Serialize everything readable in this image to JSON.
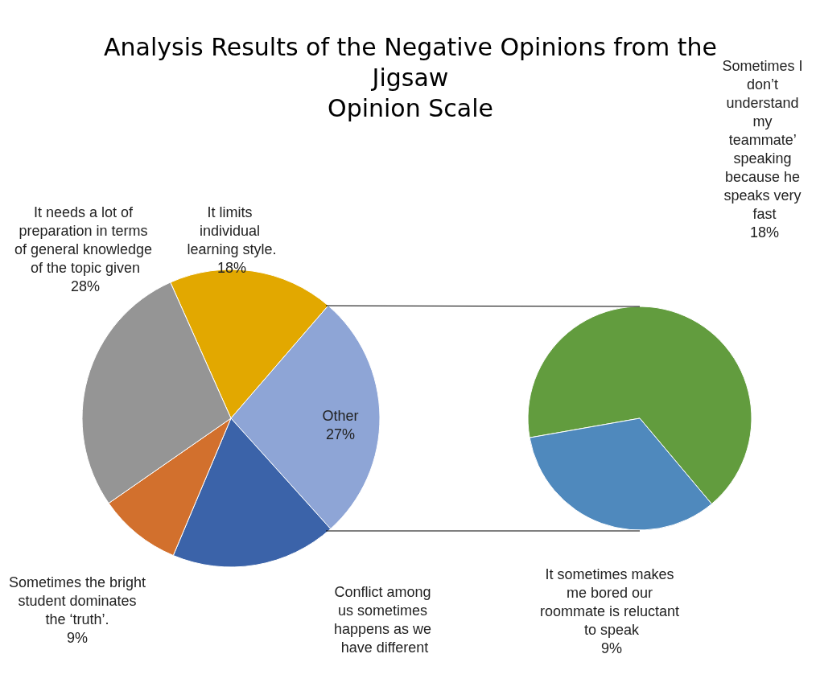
{
  "chart_data": [
    {
      "type": "pie",
      "title": "Analysis Results of the Negative Opinions from the Jigsaw\nOpinion Scale",
      "categories": [
        "It limits individual learning style.",
        "Other",
        "Conflict among us sometimes happens as we have different",
        "Sometimes the bright student dominates the ‘truth’.",
        "It needs a lot of preparation in terms of general knowledge of the topic given"
      ],
      "values": [
        18,
        27,
        18,
        9,
        28
      ],
      "value_labels": [
        "18%",
        "27%",
        null,
        "9%",
        "28%"
      ],
      "colors": [
        "#e2a800",
        "#8ea5d6",
        "#3b63a9",
        "#d2702d",
        "#959595"
      ],
      "legend": false
    },
    {
      "type": "pie",
      "categories": [
        "Sometimes I don’t understand my teammate’ speaking because he speaks very fast",
        "It sometimes makes me bored our roommate is reluctant to speak"
      ],
      "values": [
        18,
        9
      ],
      "value_labels": [
        "18%",
        "9%"
      ],
      "colors": [
        "#629c3e",
        "#4f89bd"
      ],
      "legend": false
    }
  ]
}
